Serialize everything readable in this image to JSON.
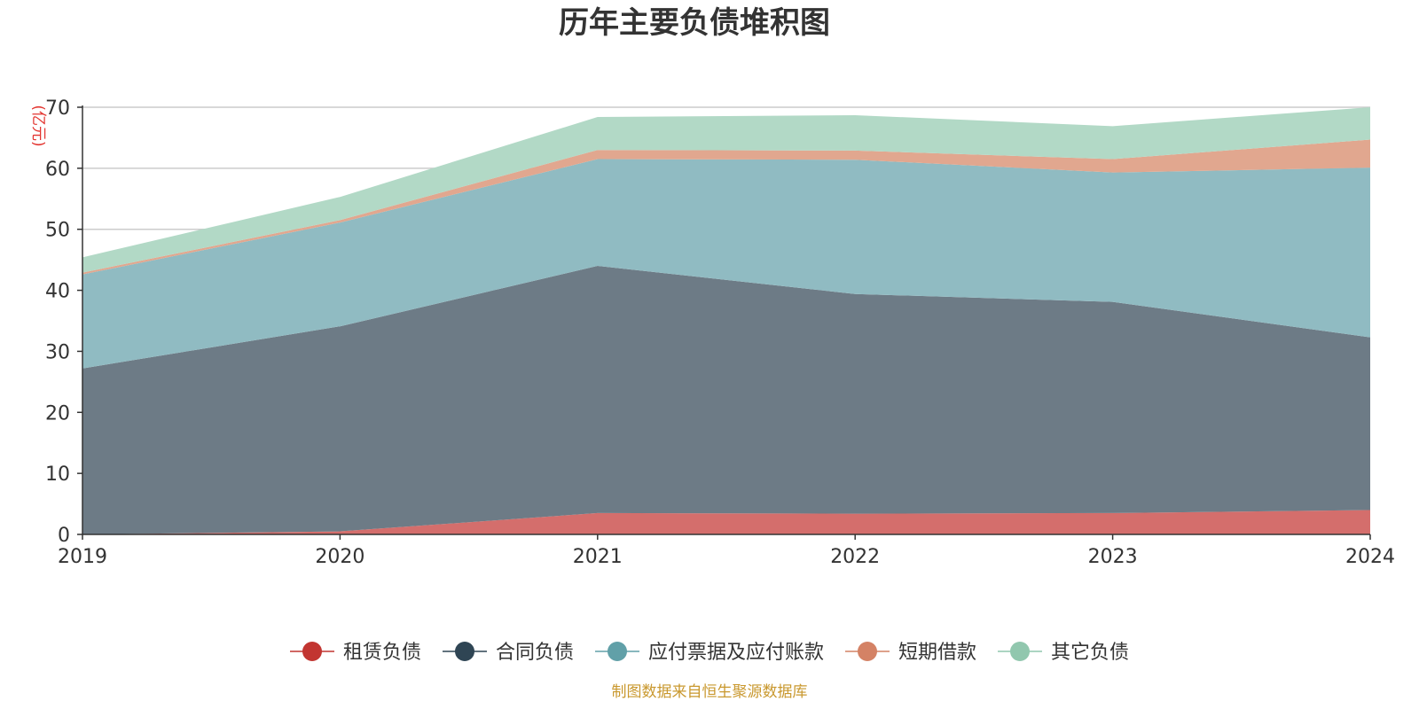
{
  "chart_data": {
    "type": "area",
    "stacked": true,
    "title": "历年主要负债堆积图",
    "ylabel": "(亿元)",
    "xlabel": "",
    "x": [
      "2019",
      "2020",
      "2021",
      "2022",
      "2023",
      "2024"
    ],
    "ylim": [
      0,
      70
    ],
    "yticks": [
      0,
      10,
      20,
      30,
      40,
      50,
      60,
      70
    ],
    "grid": true,
    "legend_position": "bottom",
    "series": [
      {
        "name": "租赁负债",
        "values": [
          0,
          0.5,
          3.5,
          3.4,
          3.5,
          4.0
        ],
        "color": "#c23531",
        "fill": "#d46e6c"
      },
      {
        "name": "合同负债",
        "values": [
          27.2,
          33.6,
          40.5,
          36.0,
          34.6,
          28.3
        ],
        "color": "#2f4554",
        "fill": "#6d7b86"
      },
      {
        "name": "应付票据及应付账款",
        "values": [
          15.4,
          17.0,
          17.5,
          22.0,
          21.2,
          27.8
        ],
        "color": "#61a0a8",
        "fill": "#90bbc2"
      },
      {
        "name": "短期借款",
        "values": [
          0.3,
          0.4,
          1.5,
          1.5,
          2.2,
          4.6
        ],
        "color": "#d48265",
        "fill": "#e1a78f"
      },
      {
        "name": "其它负债",
        "values": [
          2.5,
          3.8,
          5.4,
          5.8,
          5.4,
          5.3
        ],
        "color": "#91c7ae",
        "fill": "#b2d9c6"
      }
    ],
    "source": "制图数据来自恒生聚源数据库"
  }
}
